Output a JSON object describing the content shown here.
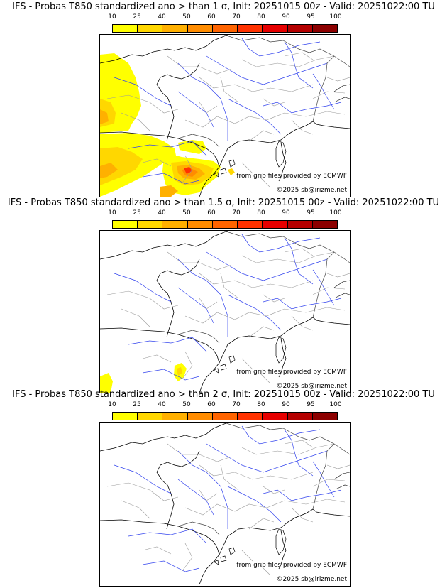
{
  "colorbar": {
    "labels": [
      "10",
      "25",
      "40",
      "50",
      "60",
      "70",
      "80",
      "90",
      "95",
      "100"
    ],
    "colors": [
      "#ffff00",
      "#ffd700",
      "#ffb000",
      "#ff8c00",
      "#ff6400",
      "#ff3200",
      "#e60000",
      "#b40000",
      "#8c0000",
      "#5a0000"
    ]
  },
  "panels": [
    {
      "title": "IFS - Probas T850  standardized ano > than 1 σ, Init: 20251015 00z - Valid: 20251022:00 TU",
      "credit_source": "from grib files provided by ECMWF",
      "credit_copyright": "©2025 sb@irizme.net"
    },
    {
      "title": "IFS - Probas T850  standardized ano > than 1.5 σ, Init: 20251015 00z - Valid: 20251022:00 TU",
      "credit_source": "from grib files provided by ECMWF",
      "credit_copyright": "©2025 sb@irizme.net"
    },
    {
      "title": "IFS - Probas T850  standardized ano > than 2 σ, Init: 20251015 00z - Valid: 20251022:00 TU",
      "credit_source": "from grib files provided by ECMWF",
      "credit_copyright": "©2025 sb@irizme.net"
    }
  ]
}
